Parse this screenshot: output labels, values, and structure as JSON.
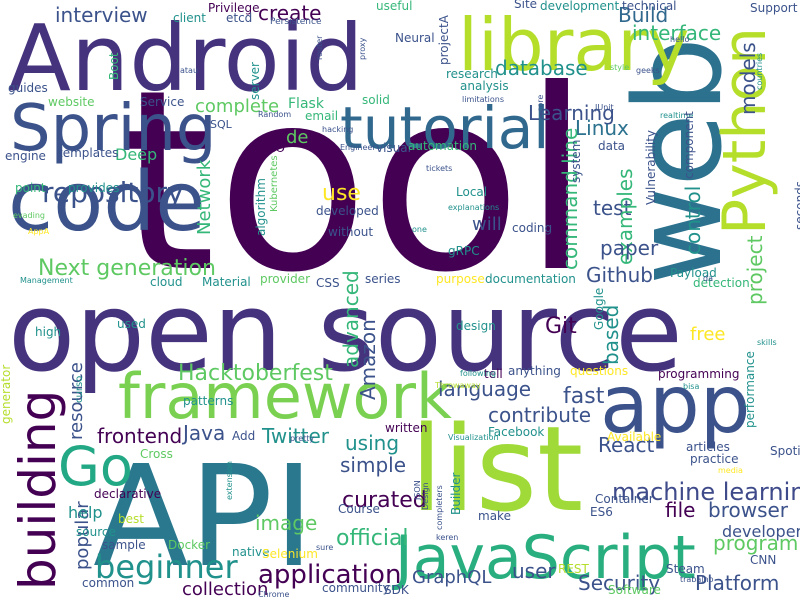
{
  "palette": {
    "dark_purple": "#440154",
    "indigo": "#3b528b",
    "teal": "#21908d",
    "green": "#35b779",
    "light_green": "#5ec962",
    "lime": "#b5de2b",
    "yellow": "#fde725"
  },
  "words": [
    {
      "text": "tool",
      "color": "#440154"
    },
    {
      "text": "open source",
      "color": "#46337e"
    },
    {
      "text": "API",
      "color": "#2a788e"
    },
    {
      "text": "Android",
      "color": "#46337e"
    },
    {
      "text": "web",
      "color": "#2c728e"
    },
    {
      "text": "list",
      "color": "#a0da39"
    },
    {
      "text": "code",
      "color": "#3b528b"
    },
    {
      "text": "library",
      "color": "#b5de2b"
    },
    {
      "text": "app",
      "color": "#3b528b"
    },
    {
      "text": "Spring",
      "color": "#3b528b"
    },
    {
      "text": "JavaScript",
      "color": "#29af7f"
    },
    {
      "text": "framework",
      "color": "#7ad151"
    },
    {
      "text": "tutorial",
      "color": "#31688e"
    },
    {
      "text": "Python",
      "color": "#b5de2b"
    },
    {
      "text": "Go",
      "color": "#22a884"
    },
    {
      "text": "building",
      "color": "#440154"
    },
    {
      "text": "beginner",
      "color": "#21918c"
    },
    {
      "text": "application",
      "color": "#440154"
    },
    {
      "text": "Next generation",
      "color": "#5ec962"
    },
    {
      "text": "repository",
      "color": "#3b528b"
    },
    {
      "text": "machine learning",
      "color": "#3e4a89"
    },
    {
      "text": "curated",
      "color": "#440154"
    },
    {
      "text": "Hacktoberfest",
      "color": "#5ec962"
    },
    {
      "text": "language",
      "color": "#3b528b"
    },
    {
      "text": "interview",
      "color": "#3b528b"
    },
    {
      "text": "create",
      "color": "#440154"
    },
    {
      "text": "Build",
      "color": "#31688e"
    },
    {
      "text": "interface",
      "color": "#35b779"
    },
    {
      "text": "database",
      "color": "#21918c"
    },
    {
      "text": "Learning",
      "color": "#3b528b"
    },
    {
      "text": "complete",
      "color": "#5ec962"
    },
    {
      "text": "Linux",
      "color": "#2c728e"
    },
    {
      "text": "de",
      "color": "#5ec962"
    },
    {
      "text": "use",
      "color": "#fde725"
    },
    {
      "text": "test",
      "color": "#3b528b"
    },
    {
      "text": "examples",
      "color": "#35b779"
    },
    {
      "text": "paper",
      "color": "#3b528b"
    },
    {
      "text": "Github",
      "color": "#3b528b"
    },
    {
      "text": "command line",
      "color": "#35b779"
    },
    {
      "text": "project",
      "color": "#5ec962"
    },
    {
      "text": "control",
      "color": "#21918c"
    },
    {
      "text": "models",
      "color": "#3b528b"
    },
    {
      "text": "Git",
      "color": "#440154"
    },
    {
      "text": "fast",
      "color": "#3b528b"
    },
    {
      "text": "contribute",
      "color": "#3b528b"
    },
    {
      "text": "based",
      "color": "#21918c"
    },
    {
      "text": "free",
      "color": "#fde725"
    },
    {
      "text": "Twitter",
      "color": "#21918c"
    },
    {
      "text": "simple",
      "color": "#3b528b"
    },
    {
      "text": "React",
      "color": "#3b528b"
    },
    {
      "text": "file",
      "color": "#440154"
    },
    {
      "text": "browser",
      "color": "#3b528b"
    },
    {
      "text": "program",
      "color": "#5ec962"
    },
    {
      "text": "Platform",
      "color": "#3b528b"
    },
    {
      "text": "user",
      "color": "#3b528b"
    },
    {
      "text": "Security",
      "color": "#3b528b"
    },
    {
      "text": "GraphQL",
      "color": "#3b528b"
    },
    {
      "text": "official",
      "color": "#35b779"
    },
    {
      "text": "image",
      "color": "#5ec962"
    },
    {
      "text": "frontend",
      "color": "#440154"
    },
    {
      "text": "Java",
      "color": "#3b528b"
    },
    {
      "text": "resource",
      "color": "#3b528b"
    },
    {
      "text": "advanced",
      "color": "#35b779"
    },
    {
      "text": "Amazon",
      "color": "#3b528b"
    },
    {
      "text": "using",
      "color": "#21918c"
    },
    {
      "text": "popular",
      "color": "#3b528b"
    },
    {
      "text": "collection",
      "color": "#440154"
    },
    {
      "text": "help",
      "color": "#21918c"
    },
    {
      "text": "developer",
      "color": "#3b528b"
    },
    {
      "text": "Network",
      "color": "#35b779"
    },
    {
      "text": "will",
      "color": "#3b528b"
    },
    {
      "text": "Deep",
      "color": "#35b779"
    },
    {
      "text": "Flask",
      "color": "#35b779"
    },
    {
      "text": "Service",
      "color": "#3b528b"
    },
    {
      "text": "Privilege",
      "color": "#440154"
    },
    {
      "text": "Neural",
      "color": "#3b528b"
    },
    {
      "text": "Support",
      "color": "#3b528b"
    },
    {
      "text": "technical",
      "color": "#3b528b"
    },
    {
      "text": "development",
      "color": "#21918c"
    },
    {
      "text": "Site",
      "color": "#3b528b"
    },
    {
      "text": "useful",
      "color": "#35b779"
    },
    {
      "text": "client",
      "color": "#21918c"
    },
    {
      "text": "etcd",
      "color": "#3b528b"
    },
    {
      "text": "Persistence",
      "color": "#3b528b"
    },
    {
      "text": "projectA",
      "color": "#3b528b"
    },
    {
      "text": "research",
      "color": "#21918c"
    },
    {
      "text": "analysis",
      "color": "#21918c"
    },
    {
      "text": "guides",
      "color": "#3b528b"
    },
    {
      "text": "website",
      "color": "#5ec962"
    },
    {
      "text": "engine",
      "color": "#3b528b"
    },
    {
      "text": "templates",
      "color": "#3b528b"
    },
    {
      "text": "provides",
      "color": "#21918c"
    },
    {
      "text": "point",
      "color": "#35b779"
    },
    {
      "text": "SQL",
      "color": "#3b528b"
    },
    {
      "text": "email",
      "color": "#35b779"
    },
    {
      "text": "solid",
      "color": "#35b779"
    },
    {
      "text": "IO",
      "color": "#440154"
    },
    {
      "text": "visual",
      "color": "#3b528b"
    },
    {
      "text": "automation",
      "color": "#35b779"
    },
    {
      "text": "Local",
      "color": "#21918c"
    },
    {
      "text": "developed",
      "color": "#3b528b"
    },
    {
      "text": "without",
      "color": "#3b528b"
    },
    {
      "text": "gRPC",
      "color": "#21918c"
    },
    {
      "text": "coding",
      "color": "#3b528b"
    },
    {
      "text": "documentation",
      "color": "#21918c"
    },
    {
      "text": "series",
      "color": "#3b528b"
    },
    {
      "text": "purpose",
      "color": "#fde725"
    },
    {
      "text": "Payload",
      "color": "#21918c"
    },
    {
      "text": "detection",
      "color": "#35b779"
    },
    {
      "text": "provider",
      "color": "#5ec962"
    },
    {
      "text": "CSS",
      "color": "#3b528b"
    },
    {
      "text": "Material",
      "color": "#21918c"
    },
    {
      "text": "cloud",
      "color": "#21918c"
    },
    {
      "text": "high",
      "color": "#21918c"
    },
    {
      "text": "used",
      "color": "#21918c"
    },
    {
      "text": "design",
      "color": "#21918c"
    },
    {
      "text": "patterns",
      "color": "#21918c"
    },
    {
      "text": "anything",
      "color": "#3b528b"
    },
    {
      "text": "tell",
      "color": "#440154"
    },
    {
      "text": "questions",
      "color": "#fde725"
    },
    {
      "text": "programming",
      "color": "#440154"
    },
    {
      "text": "written",
      "color": "#440154"
    },
    {
      "text": "Facebook",
      "color": "#21918c"
    },
    {
      "text": "Add",
      "color": "#3b528b"
    },
    {
      "text": "Cross",
      "color": "#5ec962"
    },
    {
      "text": "declarative",
      "color": "#440154"
    },
    {
      "text": "best",
      "color": "#b5de2b"
    },
    {
      "text": "source",
      "color": "#21918c"
    },
    {
      "text": "sample",
      "color": "#3b528b"
    },
    {
      "text": "Docker",
      "color": "#5ec962"
    },
    {
      "text": "common",
      "color": "#3b528b"
    },
    {
      "text": "native",
      "color": "#21918c"
    },
    {
      "text": "Selenium",
      "color": "#fde725"
    },
    {
      "text": "Course",
      "color": "#3b528b"
    },
    {
      "text": "community",
      "color": "#3b528b"
    },
    {
      "text": "Chrome",
      "color": "#3b528b"
    },
    {
      "text": "SDK",
      "color": "#3b528b"
    },
    {
      "text": "REST",
      "color": "#b5de2b"
    },
    {
      "text": "Software",
      "color": "#5ec962"
    },
    {
      "text": "Builder",
      "color": "#21918c"
    },
    {
      "text": "make",
      "color": "#3b528b"
    },
    {
      "text": "ES6",
      "color": "#3b528b"
    },
    {
      "text": "Container",
      "color": "#3b528b"
    },
    {
      "text": "Spotify",
      "color": "#3b528b"
    },
    {
      "text": "articles",
      "color": "#3b528b"
    },
    {
      "text": "practice",
      "color": "#3b528b"
    },
    {
      "text": "CNN",
      "color": "#3b528b"
    },
    {
      "text": "Steam",
      "color": "#3b528b"
    },
    {
      "text": "trabalho",
      "color": "#3b528b"
    },
    {
      "text": "Available",
      "color": "#fde725"
    },
    {
      "text": "Boot",
      "color": "#35b779"
    },
    {
      "text": "server",
      "color": "#21918c"
    },
    {
      "text": "Random",
      "color": "#3b528b"
    },
    {
      "text": "hacking",
      "color": "#3b528b"
    },
    {
      "text": "Engineer",
      "color": "#3b528b"
    },
    {
      "text": "router",
      "color": "#3b528b"
    },
    {
      "text": "proxy",
      "color": "#3b528b"
    },
    {
      "text": "atau",
      "color": "#3b528b"
    },
    {
      "text": "style",
      "color": "#5ec962"
    },
    {
      "text": "geeks",
      "color": "#3b528b"
    },
    {
      "text": "limitations",
      "color": "#3b528b"
    },
    {
      "text": "JUnit",
      "color": "#3b528b"
    },
    {
      "text": "realtime",
      "color": "#21918c"
    },
    {
      "text": "component",
      "color": "#3b528b"
    },
    {
      "text": "seconds",
      "color": "#3b528b"
    },
    {
      "text": "system",
      "color": "#3b528b"
    },
    {
      "text": "data",
      "color": "#3b528b"
    },
    {
      "text": "Vulnerability",
      "color": "#3b528b"
    },
    {
      "text": "tickets",
      "color": "#3b528b"
    },
    {
      "text": "explanations",
      "color": "#21918c"
    },
    {
      "text": "one",
      "color": "#21918c"
    },
    {
      "text": "Kubernetes",
      "color": "#5ec962"
    },
    {
      "text": "algorithm",
      "color": "#21918c"
    },
    {
      "text": "Management",
      "color": "#21918c"
    },
    {
      "text": "AppA",
      "color": "#fde725"
    },
    {
      "text": "evading",
      "color": "#5ec962"
    },
    {
      "text": "generator",
      "color": "#b5de2b"
    },
    {
      "text": "curso",
      "color": "#21918c"
    },
    {
      "text": "performance",
      "color": "#21918c"
    },
    {
      "text": "skills",
      "color": "#21918c"
    },
    {
      "text": "bisa",
      "color": "#21918c"
    },
    {
      "text": "media",
      "color": "#fde725"
    },
    {
      "text": "Google",
      "color": "#21918c"
    },
    {
      "text": "following",
      "color": "#21918c"
    },
    {
      "text": "Throwaway",
      "color": "#b5de2b"
    },
    {
      "text": "Visualization",
      "color": "#21918c"
    },
    {
      "text": "Design",
      "color": "#3b528b"
    },
    {
      "text": "JSON",
      "color": "#3b528b"
    },
    {
      "text": "completers",
      "color": "#3b528b"
    },
    {
      "text": "keren",
      "color": "#3b528b"
    },
    {
      "text": "pretty",
      "color": "#3b528b"
    },
    {
      "text": "extension",
      "color": "#21918c"
    },
    {
      "text": "sure",
      "color": "#3b528b"
    },
    {
      "text": "hello",
      "color": "#3b528b"
    },
    {
      "text": "countries",
      "color": "#21918c"
    },
    {
      "text": "da",
      "color": "#3b528b"
    },
    {
      "text": "core",
      "color": "#3b528b"
    }
  ]
}
